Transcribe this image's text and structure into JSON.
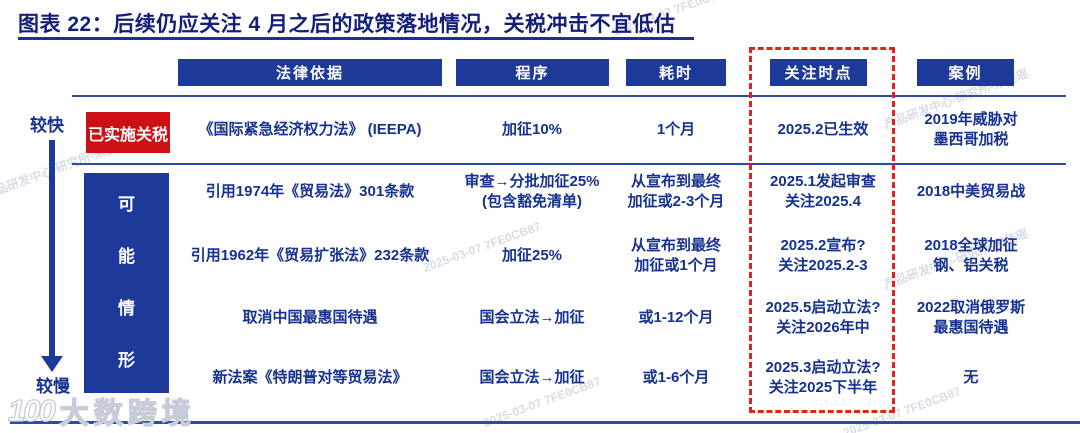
{
  "axis": {
    "top_label": "较快",
    "bottom_label": "较慢"
  },
  "watermark": {
    "brand": "大数跨境",
    "logo_text": "100",
    "stamps": [
      "2025-03-07 7FE0CB87",
      "产品研发中心-研究所-宋佳瑶"
    ]
  },
  "colors": {
    "navy_text": "#16318f",
    "header_blue": "#1d3a9a",
    "implemented_red": "#cc1016",
    "dashed_red": "#e0231c",
    "rule_blue": "#2c4ba5"
  },
  "chart_data": {
    "type": "table",
    "title": "图表 22：后续仍应关注 4 月之后的政策落地情况，关税冲击不宜低估",
    "columns": [
      "法律依据",
      "程序",
      "耗时",
      "关注时点",
      "案例"
    ],
    "highlighted_column": "关注时点",
    "speed_axis": {
      "top": "较快",
      "bottom": "较慢"
    },
    "row_groups": [
      {
        "label": "已实施关税",
        "rows": [
          [
            "《国际紧急经济权力法》 (IEEPA)",
            "加征10%",
            "1个月",
            "2025.2已生效",
            "2019年威胁对\n墨西哥加税"
          ]
        ]
      },
      {
        "label": "可能情形",
        "rows": [
          [
            "引用1974年《贸易法》301条款",
            "审查→分批加征25%\n(包含豁免清单)",
            "从宣布到最终\n加征或2-3个月",
            "2025.1发起审查\n关注2025.4",
            "2018中美贸易战"
          ],
          [
            "引用1962年《贸易扩张法》232条款",
            "加征25%",
            "从宣布到最终\n加征或1个月",
            "2025.2宣布?\n关注2025.2-3",
            "2018全球加征\n钢、铝关税"
          ],
          [
            "取消中国最惠国待遇",
            "国会立法→加征",
            "或1-12个月",
            "2025.5启动立法?\n关注2026年中",
            "2022取消俄罗斯\n最惠国待遇"
          ],
          [
            "新法案《特朗普对等贸易法》",
            "国会立法→加征",
            "或1-6个月",
            "2025.3启动立法?\n关注2025下半年",
            "无"
          ]
        ]
      }
    ]
  }
}
